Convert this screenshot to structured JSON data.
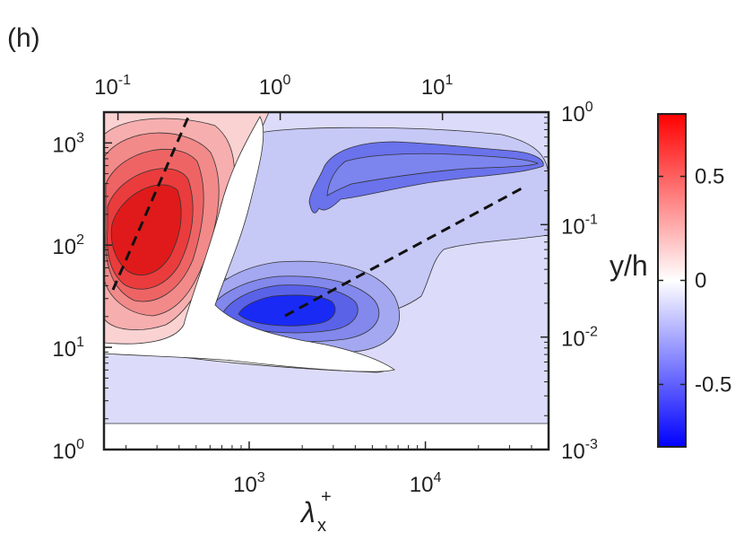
{
  "panel_label": "(h)",
  "chart_data": {
    "type": "contour",
    "title": "",
    "xlabel": "λx+",
    "xlabel_parts": {
      "base": "λ",
      "sup": "+",
      "sub": "x"
    },
    "ylabel": "",
    "ylabel_right": "y/h",
    "x_scale": "log",
    "y_scale": "log",
    "xlim": [
      150,
      50000
    ],
    "ylim": [
      1,
      2000
    ],
    "x_ticks": [
      {
        "value": 1000,
        "base": "10",
        "exp": "3"
      },
      {
        "value": 10000,
        "base": "10",
        "exp": "4"
      }
    ],
    "y_ticks": [
      {
        "value": 1,
        "base": "10",
        "exp": "0"
      },
      {
        "value": 10,
        "base": "10",
        "exp": "1"
      },
      {
        "value": 100,
        "base": "10",
        "exp": "2"
      },
      {
        "value": 1000,
        "base": "10",
        "exp": "3"
      }
    ],
    "top_axis": {
      "scale": "log",
      "ticks": [
        {
          "value": 0.1,
          "base": "10",
          "exp": "-1"
        },
        {
          "value": 1,
          "base": "10",
          "exp": "0"
        },
        {
          "value": 10,
          "base": "10",
          "exp": "1"
        }
      ],
      "tick_x_positions_at_bottom_value": [
        180,
        1500,
        12500
      ]
    },
    "right_axis": {
      "label": "y/h",
      "scale": "log",
      "lim": [
        0.001,
        1
      ],
      "ticks": [
        {
          "value": 0.001,
          "base": "10",
          "exp": "-3"
        },
        {
          "value": 0.01,
          "base": "10",
          "exp": "-2"
        },
        {
          "value": 0.1,
          "base": "10",
          "exp": "-1"
        },
        {
          "value": 1,
          "base": "10",
          "exp": "0"
        }
      ]
    },
    "colorbar": {
      "lim": [
        -0.8,
        0.8
      ],
      "ticks": [
        {
          "value": 0.5,
          "label": "0.5"
        },
        {
          "value": 0,
          "label": "0"
        },
        {
          "value": -0.5,
          "label": "-0.5"
        }
      ],
      "colormap": [
        "#0000ff",
        "#ffffff",
        "#ff0000"
      ]
    },
    "data_floor_y": 1.8,
    "contours": [
      {
        "name": "positive-core",
        "level": 0.7,
        "color": "#f01818",
        "points": [
          [
            160,
            420
          ],
          [
            250,
            700
          ],
          [
            330,
            260
          ],
          [
            280,
            60
          ],
          [
            190,
            25
          ],
          [
            150,
            60
          ],
          [
            150,
            300
          ]
        ]
      },
      {
        "name": "negative-lobe",
        "level": -0.1,
        "color": "#c6c8f6",
        "points": [
          [
            700,
            1000
          ],
          [
            900,
            1500
          ],
          [
            30000,
            1500
          ],
          [
            45000,
            900
          ],
          [
            30000,
            250
          ],
          [
            20000,
            120
          ],
          [
            14000,
            40
          ],
          [
            9000,
            25
          ],
          [
            5000,
            60
          ],
          [
            2500,
            200
          ],
          [
            1200,
            500
          ]
        ]
      },
      {
        "name": "negative-upper-core",
        "level": -0.4,
        "color": "#6a72ec",
        "points": [
          [
            3000,
            350
          ],
          [
            3500,
            900
          ],
          [
            8000,
            1100
          ],
          [
            30000,
            900
          ],
          [
            40000,
            650
          ],
          [
            20000,
            450
          ],
          [
            8000,
            380
          ],
          [
            4000,
            300
          ]
        ]
      },
      {
        "name": "negative-lower-core",
        "level": -0.7,
        "color": "#1a2af5",
        "points": [
          [
            1200,
            20
          ],
          [
            1500,
            27
          ],
          [
            2500,
            28
          ],
          [
            3000,
            22
          ],
          [
            2600,
            16
          ],
          [
            1800,
            15
          ],
          [
            1300,
            16
          ]
        ]
      }
    ],
    "dashed_lines": [
      {
        "name": "ridge-positive",
        "points": [
          [
            150,
            30
          ],
          [
            380,
            1800
          ]
        ]
      },
      {
        "name": "ridge-negative",
        "points": [
          [
            1500,
            19
          ],
          [
            38000,
            380
          ]
        ]
      }
    ]
  }
}
